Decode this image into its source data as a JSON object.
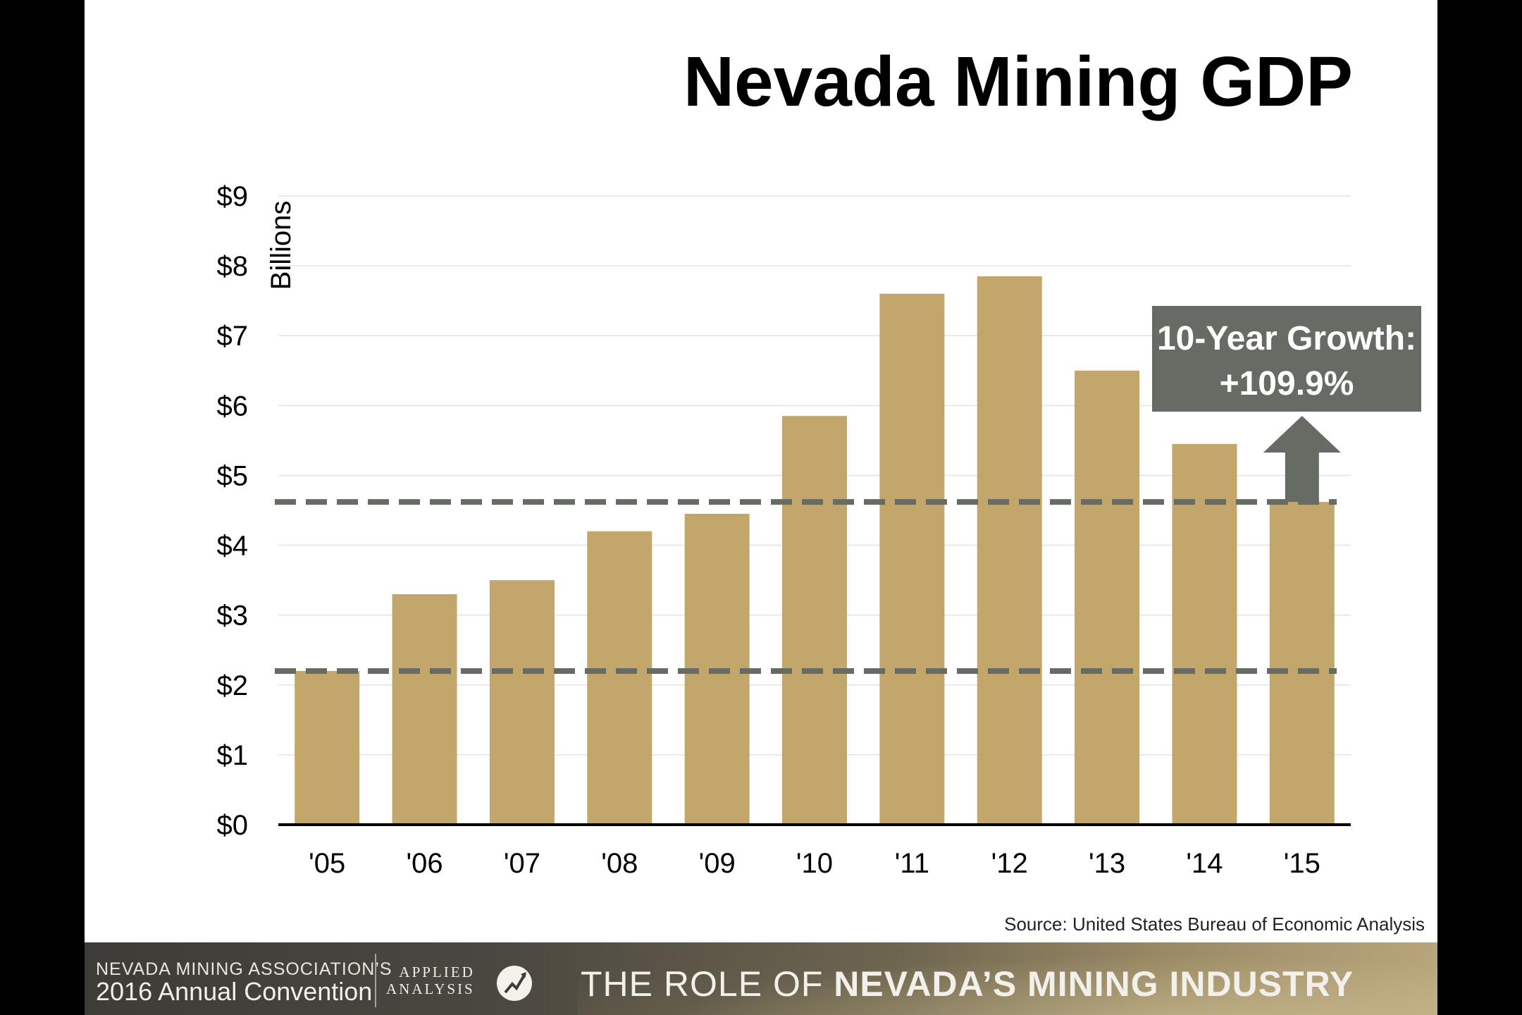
{
  "chart_data": {
    "type": "bar",
    "title": "Nevada Mining GDP",
    "ylabel": "Billions",
    "categories": [
      "'05",
      "'06",
      "'07",
      "'08",
      "'09",
      "'10",
      "'11",
      "'12",
      "'13",
      "'14",
      "'15"
    ],
    "values": [
      2.2,
      3.3,
      3.5,
      4.2,
      4.45,
      5.85,
      7.6,
      7.85,
      6.5,
      5.45,
      4.62
    ],
    "ylim": [
      0,
      9
    ],
    "yticks": [
      "$0",
      "$1",
      "$2",
      "$3",
      "$4",
      "$5",
      "$6",
      "$7",
      "$8",
      "$9"
    ],
    "grid": true,
    "bar_color": "#c3a66b",
    "reference_lines": [
      2.2,
      4.62
    ],
    "reference_line_color": "#666b64",
    "annotation": {
      "line1": "10-Year Growth:",
      "line2": "+109.9%",
      "color": "#666b64"
    },
    "source": "Source: United States Bureau of Economic Analysis"
  },
  "footer": {
    "association": "NEVADA MINING ASSOCIATION’S",
    "convention": "2016 Annual Convention",
    "logo_word1": "APPLIED",
    "logo_word2": "ANALYSIS",
    "role_prefix": "THE ROLE OF ",
    "role_emphasis": "NEVADA’S MINING INDUSTRY"
  }
}
